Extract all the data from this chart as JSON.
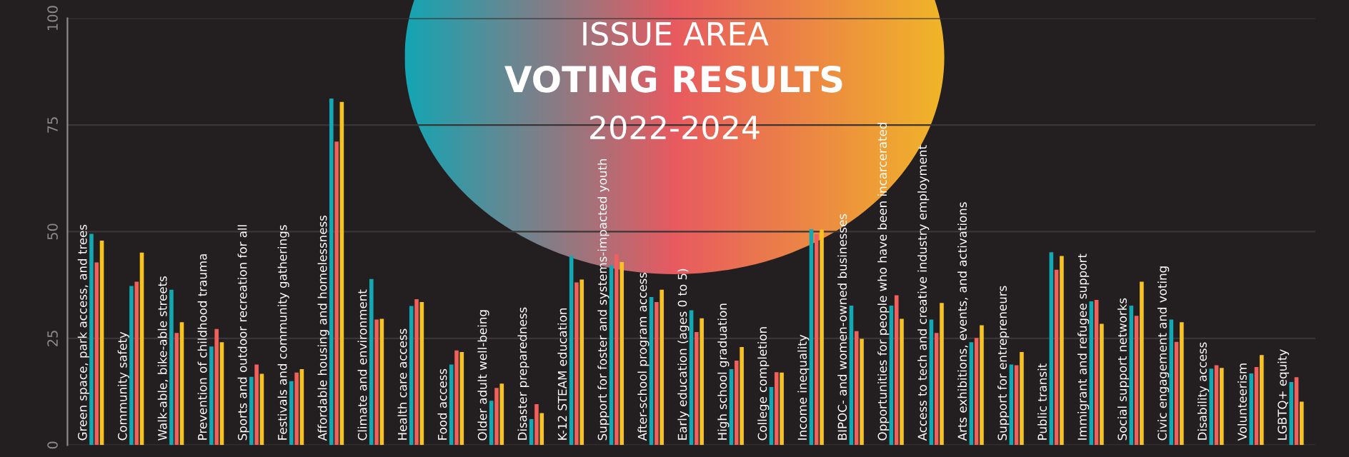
{
  "chart_data": {
    "type": "bar",
    "title": "ISSUE AREA",
    "subtitle": "VOTING RESULTS\n2022-2024",
    "categories": [
      "Green space, park access, and trees",
      "Community safety",
      "Walk-able, bike-able streets",
      "Prevention of childhood trauma",
      "Sports and outdoor recreation for all",
      "Festivals and community gatherings",
      "Affordable housing and homelessness",
      "Climate and environment",
      "Health care access",
      "Food access",
      "Older adult well-being",
      "Disaster preparedness",
      "K-12 STEAM education",
      "Support for foster and systems-impacted youth",
      "After-school program access",
      "Early education (ages 0 to 5)",
      "High school graduation",
      "College completion",
      "Income inequality",
      "BIPOC- and women-owned businesses",
      "Opportunities for people who have been incarcerated",
      "Access to tech and creative industry employment",
      "Arts exhibitions, events, and activations",
      "Support for entrepreneurs",
      "Public transit",
      "Immigrant and refugee support",
      "Social support networks",
      "Civic engagement and voting",
      "Disability access",
      "Volunteerism",
      "LGBTQ+ equity"
    ],
    "series": [
      {
        "color": "#10a9b4",
        "values": [
          49.5,
          37.3,
          36.4,
          23.1,
          16.0,
          15.0,
          81.2,
          38.9,
          32.6,
          18.9,
          10.4,
          6.1,
          44.3,
          42.1,
          34.7,
          31.6,
          17.8,
          13.6,
          50.6,
          32.7,
          32.7,
          29.4,
          24.1,
          18.9,
          45.2,
          33.7,
          32.7,
          29.4,
          17.9,
          16.8,
          14.8
        ]
      },
      {
        "color": "#f0605d",
        "values": [
          42.8,
          38.3,
          26.3,
          27.2,
          18.9,
          17.0,
          71.1,
          29.4,
          34.2,
          22.2,
          13.4,
          9.6,
          38.1,
          44.7,
          33.5,
          26.5,
          19.8,
          17.1,
          49.4,
          26.7,
          35.1,
          26.3,
          25.1,
          18.7,
          41.1,
          34.0,
          30.3,
          24.2,
          18.7,
          18.3,
          15.9
        ]
      },
      {
        "color": "#f8c320",
        "values": [
          47.9,
          45.1,
          28.8,
          24.1,
          16.7,
          17.8,
          80.4,
          29.6,
          33.5,
          21.8,
          14.4,
          7.5,
          38.8,
          42.9,
          36.4,
          29.7,
          23.0,
          17.0,
          50.5,
          24.9,
          29.6,
          33.3,
          28.1,
          21.8,
          44.3,
          28.4,
          38.3,
          28.8,
          18.1,
          21.1,
          10.2
        ]
      }
    ],
    "ylim": [
      0,
      100
    ],
    "yticks": [
      0,
      25,
      50,
      75,
      100
    ],
    "grid": "y"
  }
}
